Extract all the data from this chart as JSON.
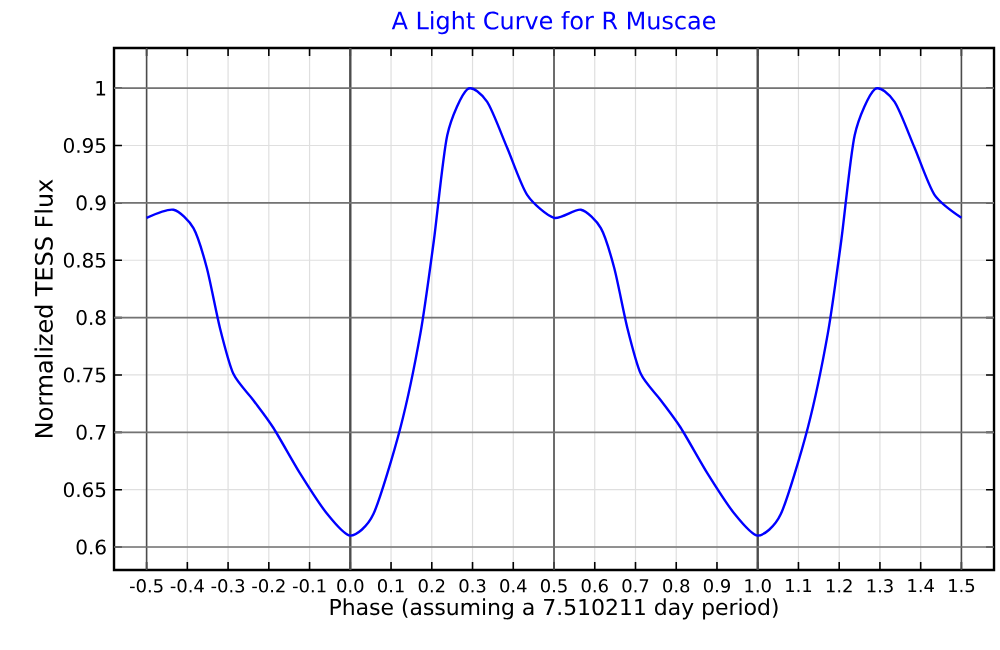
{
  "chart_data": {
    "type": "line",
    "title": "A Light Curve for R Muscae",
    "xlabel": "Phase (assuming a 7.510211 day period)",
    "ylabel": "Normalized TESS Flux",
    "x": [
      -0.5,
      -0.434,
      -0.385,
      -0.352,
      -0.32,
      -0.287,
      -0.238,
      -0.189,
      -0.123,
      -0.057,
      0,
      0.057,
      0.123,
      0.172,
      0.205,
      0.238,
      0.287,
      0.336,
      0.385,
      0.434,
      0.5,
      0.566,
      0.615,
      0.648,
      0.68,
      0.713,
      0.762,
      0.811,
      0.877,
      0.943,
      1,
      1.057,
      1.123,
      1.172,
      1.205,
      1.238,
      1.287,
      1.336,
      1.385,
      1.434,
      1.5
    ],
    "series": [
      {
        "color": "#0000ff",
        "values": [
          0.887,
          0.894,
          0.878,
          0.843,
          0.791,
          0.751,
          0.728,
          0.704,
          0.664,
          0.629,
          0.61,
          0.629,
          0.704,
          0.786,
          0.867,
          0.959,
          0.999,
          0.988,
          0.948,
          0.907,
          0.887,
          0.894,
          0.878,
          0.843,
          0.791,
          0.751,
          0.728,
          0.704,
          0.664,
          0.629,
          0.61,
          0.629,
          0.704,
          0.786,
          0.867,
          0.959,
          0.999,
          0.988,
          0.948,
          0.907,
          0.887
        ]
      }
    ],
    "xlim": [
      -0.58,
      1.58
    ],
    "ylim": [
      0.58,
      1.035
    ],
    "xticks": [
      {
        "value": -0.5,
        "label": "-0.5"
      },
      {
        "value": -0.4,
        "label": "-0.4"
      },
      {
        "value": -0.3,
        "label": "-0.3"
      },
      {
        "value": -0.2,
        "label": "-0.2"
      },
      {
        "value": -0.1,
        "label": "-0.1"
      },
      {
        "value": 0,
        "label": "0.0"
      },
      {
        "value": 0.1,
        "label": "0.1"
      },
      {
        "value": 0.2,
        "label": "0.2"
      },
      {
        "value": 0.3,
        "label": "0.3"
      },
      {
        "value": 0.4,
        "label": "0.4"
      },
      {
        "value": 0.5,
        "label": "0.5"
      },
      {
        "value": 0.6,
        "label": "0.6"
      },
      {
        "value": 0.7,
        "label": "0.7"
      },
      {
        "value": 0.8,
        "label": "0.8"
      },
      {
        "value": 0.9,
        "label": "0.9"
      },
      {
        "value": 1,
        "label": "1.0"
      },
      {
        "value": 1.1,
        "label": "1.1"
      },
      {
        "value": 1.2,
        "label": "1.2"
      },
      {
        "value": 1.3,
        "label": "1.3"
      },
      {
        "value": 1.4,
        "label": "1.4"
      },
      {
        "value": 1.5,
        "label": "1.5"
      }
    ],
    "yticks": [
      0.6,
      0.65,
      0.7,
      0.75,
      0.8,
      0.85,
      0.9,
      0.95,
      {
        "value": 1,
        "label": "1"
      }
    ],
    "grid": true,
    "marker": "none",
    "line_style": "solid"
  }
}
